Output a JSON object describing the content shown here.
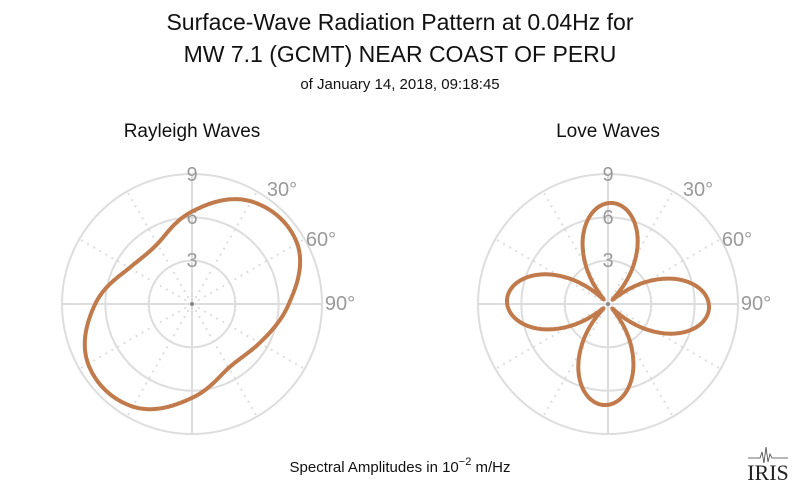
{
  "title_line1": "Surface-Wave Radiation Pattern at 0.04Hz for",
  "title_line2": "MW 7.1 (GCMT) NEAR COAST OF PERU",
  "subtitle": "of January 14, 2018, 09:18:45",
  "xlabel_prefix": "Spectral Amplitudes in 10",
  "xlabel_exp": "−2",
  "xlabel_suffix": " m/Hz",
  "logo_text": "IRIS",
  "colors": {
    "line": "#c07a4b",
    "grid": "#dddddd",
    "tick": "#999999"
  },
  "chart_data": [
    {
      "type": "polar-line",
      "title": "Rayleigh Waves",
      "rlim": [
        0,
        9
      ],
      "radial_ticks": [
        "3",
        "6",
        "9"
      ],
      "angle_ticks": [
        "30°",
        "60°",
        "90°"
      ],
      "theta_step_deg": 30,
      "theta_deg": [
        0,
        30,
        60,
        90,
        120,
        150,
        180,
        210,
        240,
        270,
        300,
        330
      ],
      "r": [
        6.4,
        8.2,
        8.4,
        6.7,
        5.4,
        5.1,
        6.5,
        8.2,
        8.3,
        6.7,
        5.0,
        4.8
      ]
    },
    {
      "type": "polar-line",
      "title": "Love Waves",
      "rlim": [
        0,
        9
      ],
      "radial_ticks": [
        "3",
        "6",
        "9"
      ],
      "angle_ticks": [
        "30°",
        "60°",
        "90°"
      ],
      "theta_step_deg": 5,
      "r": [
        6.98,
        6.96,
        6.73,
        6.29,
        5.66,
        4.86,
        3.91,
        2.85,
        1.69,
        0.49,
        0.73,
        1.93,
        3.07,
        4.11,
        5.04,
        5.8,
        6.39,
        6.79,
        6.98,
        6.96,
        6.73,
        6.29,
        5.66,
        4.86,
        3.91,
        2.85,
        1.69,
        0.49,
        0.73,
        1.93,
        3.07,
        4.11,
        5.04,
        5.8,
        6.39,
        6.79,
        6.98,
        6.96,
        6.73,
        6.29,
        5.66,
        4.86,
        3.91,
        2.85,
        1.69,
        0.49,
        0.73,
        1.93,
        3.07,
        4.11,
        5.04,
        5.8,
        6.39,
        6.79,
        6.98,
        6.96,
        6.73,
        6.29,
        5.66,
        4.86,
        3.91,
        2.85,
        1.69,
        0.49,
        0.73,
        1.93,
        3.07,
        4.11,
        5.04,
        5.8,
        6.39,
        6.79
      ]
    }
  ]
}
